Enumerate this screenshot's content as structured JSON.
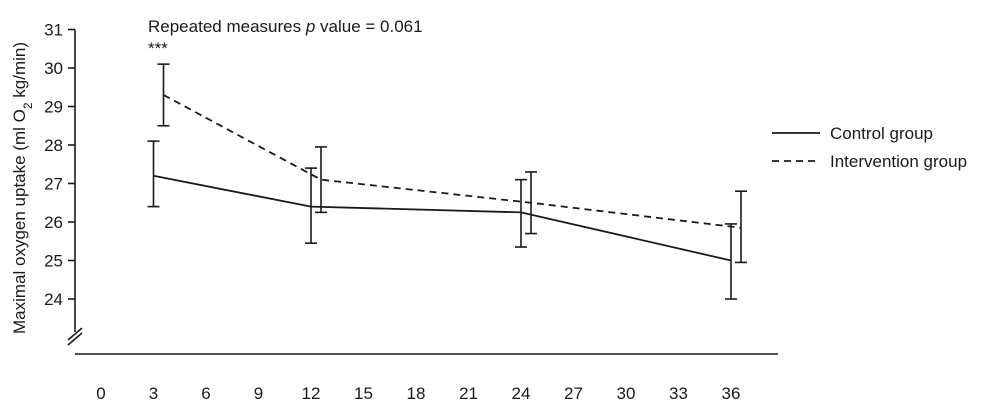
{
  "chart_data": {
    "type": "line",
    "title": "",
    "annotation": {
      "prefix": "Repeated measures ",
      "p_symbol": "p",
      "suffix": " value = 0.061",
      "significance": "***"
    },
    "xlabel": "",
    "ylabel": "Maximal oxygen uptake (ml O",
    "ylabel_subscript": "2",
    "ylabel_suffix": " kg/min)",
    "x_ticks": [
      0,
      3,
      6,
      9,
      12,
      15,
      18,
      21,
      24,
      27,
      30,
      33,
      36
    ],
    "y_ticks": [
      24,
      25,
      26,
      27,
      28,
      29,
      30,
      31
    ],
    "xlim": [
      0,
      37
    ],
    "ylim": [
      24,
      31
    ],
    "axis_break": true,
    "legend_position": "right",
    "series": [
      {
        "name": "Control group",
        "style": "solid",
        "x": [
          3,
          12,
          24,
          36
        ],
        "y": [
          27.2,
          26.4,
          26.25,
          25.0
        ],
        "err_low": [
          26.4,
          25.45,
          25.35,
          24.0
        ],
        "err_high": [
          28.1,
          27.4,
          27.1,
          25.95
        ]
      },
      {
        "name": "Intervention group",
        "style": "dashed",
        "x": [
          3,
          12,
          24,
          36
        ],
        "y": [
          29.3,
          27.1,
          26.5,
          25.85
        ],
        "err_low": [
          28.5,
          26.25,
          25.7,
          24.95
        ],
        "err_high": [
          30.1,
          27.95,
          27.3,
          26.8
        ]
      }
    ]
  }
}
